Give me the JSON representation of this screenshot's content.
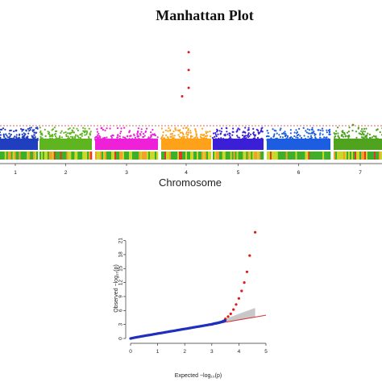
{
  "chart_data": [
    {
      "type": "scatter",
      "title": "Manhattan Plot",
      "xlabel": "Chromosome",
      "chromosomes": [
        "1",
        "2",
        "3",
        "4",
        "5",
        "6",
        "7"
      ],
      "chromosome_colors": [
        "#1f3fbf",
        "#5fb51f",
        "#ee20d8",
        "#ffa21a",
        "#3b1fd6",
        "#1d5ee0",
        "#4fa31f"
      ],
      "significance_line": "dashed red horizontal threshold",
      "threshold_color": "#d93030",
      "density_strip": "green-yellow-red marker density bar under each chromosome",
      "peak_chromosome": "4",
      "peak_points": [
        {
          "chromosome": "4",
          "position": 0.55,
          "level": 0.95
        },
        {
          "chromosome": "4",
          "position": 0.55,
          "level": 0.72
        },
        {
          "chromosome": "4",
          "position": 0.55,
          "level": 0.49
        },
        {
          "chromosome": "4",
          "position": 0.42,
          "level": 0.38
        }
      ]
    },
    {
      "type": "scatter",
      "title": "",
      "xlabel": "Expected  −log₁₀(p)",
      "ylabel": "Observed  −log₁₀(p)",
      "xlim": [
        0,
        5
      ],
      "ylim": [
        0,
        23
      ],
      "x_ticks": [
        "0",
        "1",
        "2",
        "3",
        "4",
        "5"
      ],
      "y_ticks": [
        "0",
        "3",
        "6",
        "9",
        "12",
        "15",
        "18",
        "21"
      ],
      "reference_line": {
        "x": [
          0,
          5
        ],
        "y": [
          0,
          5
        ],
        "color": "#d93030"
      },
      "series": [
        {
          "color": "#1f2fbf",
          "x": [
            0.0,
            0.2,
            0.4,
            0.6,
            0.8,
            1.0,
            1.2,
            1.4,
            1.6,
            1.8,
            2.0,
            2.2,
            2.4,
            2.6,
            2.8,
            3.0,
            3.1,
            3.2,
            3.3,
            3.4,
            3.45,
            3.5
          ],
          "y": [
            0.0,
            0.25,
            0.45,
            0.65,
            0.85,
            1.05,
            1.25,
            1.45,
            1.65,
            1.85,
            2.05,
            2.25,
            2.45,
            2.65,
            2.85,
            3.05,
            3.2,
            3.3,
            3.45,
            3.6,
            3.75,
            3.9
          ]
        },
        {
          "color": "#e01a1a",
          "x": [
            3.5,
            3.6,
            3.7,
            3.8,
            3.9,
            4.0,
            4.1,
            4.2,
            4.3,
            4.4,
            4.6
          ],
          "y": [
            4.2,
            4.7,
            5.3,
            6.2,
            7.3,
            8.6,
            10.2,
            12.0,
            14.3,
            17.8,
            22.8
          ]
        }
      ]
    }
  ]
}
